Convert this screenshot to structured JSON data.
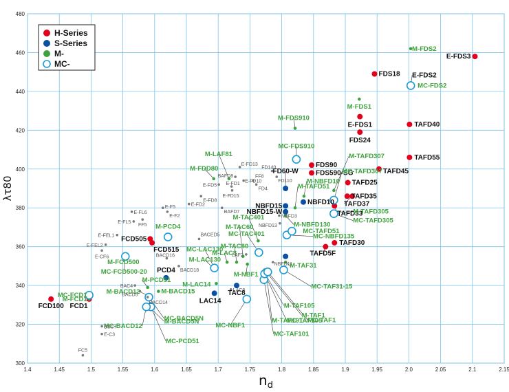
{
  "chart_data": {
    "type": "scatter",
    "xlabel": "n",
    "xlabel_sub": "d",
    "ylabel": "λτ80",
    "xlim": [
      1.4,
      2.15
    ],
    "ylim": [
      300,
      480
    ],
    "x_ticks": [
      "1.4",
      "1.45",
      "1.5",
      "1.55",
      "1.6",
      "1.65",
      "1.7",
      "1.75",
      "1.8",
      "1.85",
      "1.9",
      "1.95",
      "2.0",
      "2.05",
      "2.1",
      "2.15"
    ],
    "y_ticks": [
      "300",
      "320",
      "340",
      "360",
      "380",
      "400",
      "420",
      "440",
      "460",
      "480"
    ],
    "grid": true,
    "legend_position": "top-left",
    "colors": {
      "H": "#e3001b",
      "S": "#0a4fa0",
      "M": "#3ea33e",
      "MC": "#1a9ad6",
      "small": "#7a7a7a",
      "line": "#333333"
    },
    "legend": [
      {
        "key": "H",
        "label": "H-Series"
      },
      {
        "key": "S",
        "label": "S-Series"
      },
      {
        "key": "M",
        "label": "M-"
      },
      {
        "key": "MC",
        "label": "MC-"
      }
    ],
    "series": [
      {
        "name": "H-Series",
        "key": "H",
        "points": [
          {
            "x": 1.437,
            "y": 333,
            "label": "FCD100"
          },
          {
            "x": 1.497,
            "y": 333,
            "label": "FCD1"
          },
          {
            "x": 1.593,
            "y": 364,
            "label": "FCD505"
          },
          {
            "x": 1.596,
            "y": 362,
            "label": "FCD515"
          },
          {
            "x": 1.847,
            "y": 402,
            "label": "FDS90"
          },
          {
            "x": 1.847,
            "y": 398,
            "label": "FDS590-SG"
          },
          {
            "x": 1.883,
            "y": 381,
            "label": "TAFD33"
          },
          {
            "x": 1.869,
            "y": 360,
            "label": "TAFD5F"
          },
          {
            "x": 1.883,
            "y": 362,
            "label": "TAFD30"
          },
          {
            "x": 1.904,
            "y": 393,
            "label": "TAFD25"
          },
          {
            "x": 1.903,
            "y": 386,
            "label": "TAFD35"
          },
          {
            "x": 1.911,
            "y": 386,
            "label": "TAFD37"
          },
          {
            "x": 1.923,
            "y": 427,
            "label": "E-FDS1"
          },
          {
            "x": 1.923,
            "y": 419,
            "label": "FDS24"
          },
          {
            "x": 1.953,
            "y": 400,
            "label": "TAFD45"
          },
          {
            "x": 1.946,
            "y": 449,
            "label": "FDS18"
          },
          {
            "x": 2.001,
            "y": 423,
            "label": "TAFD40"
          },
          {
            "x": 2.001,
            "y": 406,
            "label": "TAFD55"
          },
          {
            "x": 2.003,
            "y": 443,
            "label": "E-FDS2"
          },
          {
            "x": 2.104,
            "y": 458,
            "label": "E-FDS3"
          }
        ]
      },
      {
        "name": "S-Series",
        "key": "S",
        "points": [
          {
            "x": 1.618,
            "y": 344,
            "label": "PCD4"
          },
          {
            "x": 1.694,
            "y": 336,
            "label": "LAC14"
          },
          {
            "x": 1.729,
            "y": 340,
            "label": "TAC8"
          },
          {
            "x": 1.806,
            "y": 390,
            "label": "FD60-W"
          },
          {
            "x": 1.806,
            "y": 381,
            "label": "NBFD15"
          },
          {
            "x": 1.806,
            "y": 378,
            "label": "NBFD15-W"
          },
          {
            "x": 1.834,
            "y": 383,
            "label": "NBFD10"
          },
          {
            "x": 1.806,
            "y": 355,
            "label": ""
          },
          {
            "x": 1.773,
            "y": 347,
            "label": ""
          }
        ]
      },
      {
        "name": "M-",
        "key": "M",
        "points": [
          {
            "x": 1.497,
            "y": 333,
            "label": "M-FCD1"
          },
          {
            "x": 1.553,
            "y": 356,
            "label": "M-FCD500"
          },
          {
            "x": 1.589,
            "y": 339,
            "label": "M-PCD51"
          },
          {
            "x": 1.588,
            "y": 335,
            "label": "M-BACD12"
          },
          {
            "x": 1.606,
            "y": 337,
            "label": "M-BACD15"
          },
          {
            "x": 1.588,
            "y": 330,
            "label": "M-BACD5N"
          },
          {
            "x": 1.621,
            "y": 365,
            "label": "M-PCD4"
          },
          {
            "x": 1.692,
            "y": 349,
            "label": "M-LAC130"
          },
          {
            "x": 1.714,
            "y": 352,
            "label": "M-LAC8"
          },
          {
            "x": 1.729,
            "y": 352,
            "label": "M-TAC80"
          },
          {
            "x": 1.697,
            "y": 341,
            "label": "M-LAC14"
          },
          {
            "x": 1.739,
            "y": 355,
            "label": "M-TAC60"
          },
          {
            "x": 1.746,
            "y": 351,
            "label": "M-NBF1"
          },
          {
            "x": 1.693,
            "y": 395,
            "label": "M-FDD80"
          },
          {
            "x": 1.717,
            "y": 395,
            "label": "M-LAF81"
          },
          {
            "x": 1.821,
            "y": 421,
            "label": "M-FDS910"
          },
          {
            "x": 1.763,
            "y": 363,
            "label": "M-TAC401"
          },
          {
            "x": 1.776,
            "y": 346,
            "label": "M-TAF101"
          },
          {
            "x": 1.772,
            "y": 347,
            "label": "M-TAF105"
          },
          {
            "x": 1.773,
            "y": 348,
            "label": "M-TAF1"
          },
          {
            "x": 1.806,
            "y": 352,
            "label": "M-TAF31"
          },
          {
            "x": 1.821,
            "y": 380,
            "label": "M-TAFD51"
          },
          {
            "x": 1.835,
            "y": 386,
            "label": "M-NBFD10"
          },
          {
            "x": 1.806,
            "y": 376,
            "label": "M-NBFD130"
          },
          {
            "x": 1.882,
            "y": 389,
            "label": "M-TAFD307"
          },
          {
            "x": 1.882,
            "y": 377,
            "label": "M-TAFD305"
          },
          {
            "x": 1.922,
            "y": 436,
            "label": "M-FDS1"
          },
          {
            "x": 2.003,
            "y": 462,
            "label": "M-FDS2"
          }
        ]
      },
      {
        "name": "MC-",
        "key": "MC",
        "points": [
          {
            "x": 1.497,
            "y": 335,
            "label": "MC-FCD1"
          },
          {
            "x": 1.554,
            "y": 355,
            "label": "MC-FCD500-20"
          },
          {
            "x": 1.621,
            "y": 365,
            "label": ""
          },
          {
            "x": 1.594,
            "y": 329,
            "label": "MC-PCD51"
          },
          {
            "x": 1.587,
            "y": 329,
            "label": "MC-BACD12"
          },
          {
            "x": 1.591,
            "y": 334,
            "label": "MC-BACD5N"
          },
          {
            "x": 1.694,
            "y": 349,
            "label": "MC-LAC130"
          },
          {
            "x": 1.745,
            "y": 333,
            "label": "MC-NBF1"
          },
          {
            "x": 1.772,
            "y": 343,
            "label": "MC-TAF101"
          },
          {
            "x": 1.773,
            "y": 346,
            "label": "MC-TAF105"
          },
          {
            "x": 1.778,
            "y": 347,
            "label": "MC-TAF1"
          },
          {
            "x": 1.803,
            "y": 348,
            "label": "MC-TAF31-15"
          },
          {
            "x": 1.764,
            "y": 357,
            "label": "MC-TAC401"
          },
          {
            "x": 1.808,
            "y": 366,
            "label": "MC-NBFD135"
          },
          {
            "x": 1.823,
            "y": 405,
            "label": "MC-FDS910"
          },
          {
            "x": 1.816,
            "y": 368,
            "label": "MC-TAFD51"
          },
          {
            "x": 1.882,
            "y": 384,
            "label": "MC-TAFD307"
          },
          {
            "x": 1.882,
            "y": 377,
            "label": "MC-TAFD305"
          },
          {
            "x": 2.003,
            "y": 443,
            "label": "MC-FDS2"
          }
        ]
      },
      {
        "name": "",
        "key": "small",
        "points": [
          {
            "x": 1.487,
            "y": 304,
            "label": "FC5"
          },
          {
            "x": 1.517,
            "y": 319,
            "label": "BSC7"
          },
          {
            "x": 1.517,
            "y": 315,
            "label": "E-C3"
          },
          {
            "x": 1.517,
            "y": 358,
            "label": "E-CF6"
          },
          {
            "x": 1.523,
            "y": 361,
            "label": "E-FEL2"
          },
          {
            "x": 1.541,
            "y": 366,
            "label": "E-FEL1"
          },
          {
            "x": 1.564,
            "y": 378,
            "label": "E-FL6"
          },
          {
            "x": 1.567,
            "y": 373,
            "label": "E-FL5"
          },
          {
            "x": 1.581,
            "y": 374,
            "label": "FF5"
          },
          {
            "x": 1.613,
            "y": 380,
            "label": "E-F5"
          },
          {
            "x": 1.62,
            "y": 378,
            "label": "E-F2"
          },
          {
            "x": 1.654,
            "y": 382,
            "label": "E-FD2"
          },
          {
            "x": 1.673,
            "y": 386,
            "label": "E-FD8"
          },
          {
            "x": 1.701,
            "y": 392,
            "label": "E-FD5"
          },
          {
            "x": 1.706,
            "y": 380,
            "label": "BAFD7"
          },
          {
            "x": 1.722,
            "y": 389,
            "label": "E-FD15"
          },
          {
            "x": 1.721,
            "y": 391,
            "label": "E-FD1"
          },
          {
            "x": 1.74,
            "y": 394,
            "label": "E-FD10"
          },
          {
            "x": 1.727,
            "y": 396,
            "label": "BAFD8"
          },
          {
            "x": 1.734,
            "y": 401,
            "label": "E-FD13"
          },
          {
            "x": 1.785,
            "y": 399,
            "label": "FD140"
          },
          {
            "x": 1.792,
            "y": 396,
            "label": "FD110"
          },
          {
            "x": 1.755,
            "y": 394,
            "label": "FF8"
          },
          {
            "x": 1.76,
            "y": 392,
            "label": "FD4"
          },
          {
            "x": 1.67,
            "y": 364,
            "label": "BACED5"
          },
          {
            "x": 1.619,
            "y": 354,
            "label": "BACD16"
          },
          {
            "x": 1.638,
            "y": 350,
            "label": "BACD18"
          },
          {
            "x": 1.569,
            "y": 340,
            "label": "BAC4"
          },
          {
            "x": 1.577,
            "y": 337,
            "label": "BACD5"
          },
          {
            "x": 1.589,
            "y": 334,
            "label": "BACD14"
          },
          {
            "x": 1.72,
            "y": 338,
            "label": "LAC8"
          },
          {
            "x": 1.744,
            "y": 356,
            "label": "LAF2"
          },
          {
            "x": 1.796,
            "y": 376,
            "label": "NBFD3"
          },
          {
            "x": 1.797,
            "y": 372,
            "label": "NBFD13"
          },
          {
            "x": 1.786,
            "y": 352,
            "label": "NBFD11"
          }
        ]
      }
    ]
  }
}
